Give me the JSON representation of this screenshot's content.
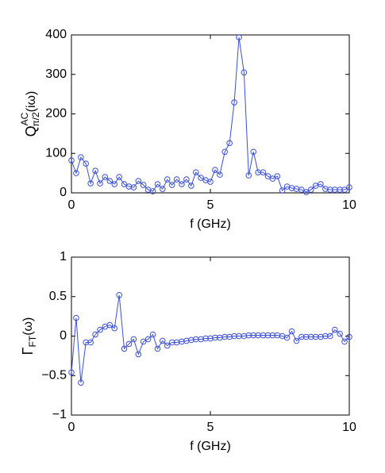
{
  "chart_data": [
    {
      "type": "line",
      "color": "#3a4fd6",
      "xlabel": "f (GHz)",
      "ylabel": {
        "base": "Q",
        "sup": "AC",
        "sub": "π/2",
        "rest": "(iω)"
      },
      "x": [
        0,
        0.17,
        0.34,
        0.52,
        0.69,
        0.86,
        1.03,
        1.21,
        1.38,
        1.55,
        1.72,
        1.9,
        2.07,
        2.24,
        2.41,
        2.59,
        2.76,
        2.93,
        3.1,
        3.28,
        3.45,
        3.62,
        3.79,
        3.97,
        4.14,
        4.31,
        4.48,
        4.66,
        4.83,
        5,
        5.17,
        5.34,
        5.52,
        5.69,
        5.86,
        6.03,
        6.21,
        6.38,
        6.55,
        6.72,
        6.9,
        7.07,
        7.24,
        7.41,
        7.59,
        7.76,
        7.93,
        8.1,
        8.28,
        8.45,
        8.62,
        8.79,
        8.97,
        9.14,
        9.31,
        9.48,
        9.66,
        9.83,
        10
      ],
      "values": [
        82,
        50,
        90,
        74,
        24,
        56,
        24,
        40,
        30,
        22,
        40,
        22,
        16,
        14,
        30,
        20,
        8,
        4,
        22,
        10,
        34,
        20,
        34,
        22,
        34,
        18,
        52,
        38,
        32,
        28,
        58,
        46,
        104,
        126,
        229,
        394,
        305,
        44,
        104,
        52,
        52,
        42,
        36,
        42,
        6,
        16,
        12,
        10,
        8,
        2,
        8,
        18,
        22,
        10,
        8,
        8,
        8,
        8,
        14
      ],
      "xlim": [
        0,
        10
      ],
      "xticks": [
        0,
        5,
        10
      ],
      "ylim": [
        0,
        400
      ],
      "yticks": [
        0,
        100,
        200,
        300,
        400
      ]
    },
    {
      "type": "line",
      "color": "#3a4fd6",
      "xlabel": "f (GHz)",
      "ylabel": {
        "base": "Γ",
        "sub": "FT",
        "rest": "(ω)"
      },
      "x": [
        0,
        0.17,
        0.34,
        0.52,
        0.69,
        0.86,
        1.03,
        1.21,
        1.38,
        1.55,
        1.72,
        1.9,
        2.07,
        2.24,
        2.41,
        2.59,
        2.76,
        2.93,
        3.1,
        3.28,
        3.45,
        3.62,
        3.79,
        3.97,
        4.14,
        4.31,
        4.48,
        4.66,
        4.83,
        5,
        5.17,
        5.34,
        5.52,
        5.69,
        5.86,
        6.03,
        6.21,
        6.38,
        6.55,
        6.72,
        6.9,
        7.07,
        7.24,
        7.41,
        7.59,
        7.76,
        7.93,
        8.1,
        8.28,
        8.45,
        8.62,
        8.79,
        8.97,
        9.14,
        9.31,
        9.48,
        9.66,
        9.83,
        10
      ],
      "values": [
        -0.46,
        0.23,
        -0.59,
        -0.08,
        -0.08,
        0.02,
        0.08,
        0.12,
        0.14,
        0.1,
        0.52,
        -0.16,
        -0.1,
        -0.04,
        -0.23,
        -0.07,
        -0.04,
        0.02,
        -0.16,
        -0.06,
        -0.12,
        -0.08,
        -0.08,
        -0.07,
        -0.06,
        -0.05,
        -0.04,
        -0.04,
        -0.03,
        -0.03,
        -0.02,
        -0.02,
        -0.01,
        -0.01,
        0,
        0,
        0,
        0.01,
        0.01,
        0.01,
        0.01,
        0.01,
        0.01,
        0.01,
        0,
        -0.02,
        0.06,
        -0.06,
        -0.01,
        -0.01,
        -0.01,
        -0.01,
        -0.01,
        0,
        0,
        0.08,
        0.03,
        -0.07,
        -0.01
      ],
      "xlim": [
        0,
        10
      ],
      "xticks": [
        0,
        5,
        10
      ],
      "ylim": [
        -1,
        1
      ],
      "yticks": [
        {
          "value": -1,
          "label": "−1"
        },
        {
          "value": -0.5,
          "label": "−0.5"
        },
        0,
        0.5,
        1
      ]
    }
  ]
}
